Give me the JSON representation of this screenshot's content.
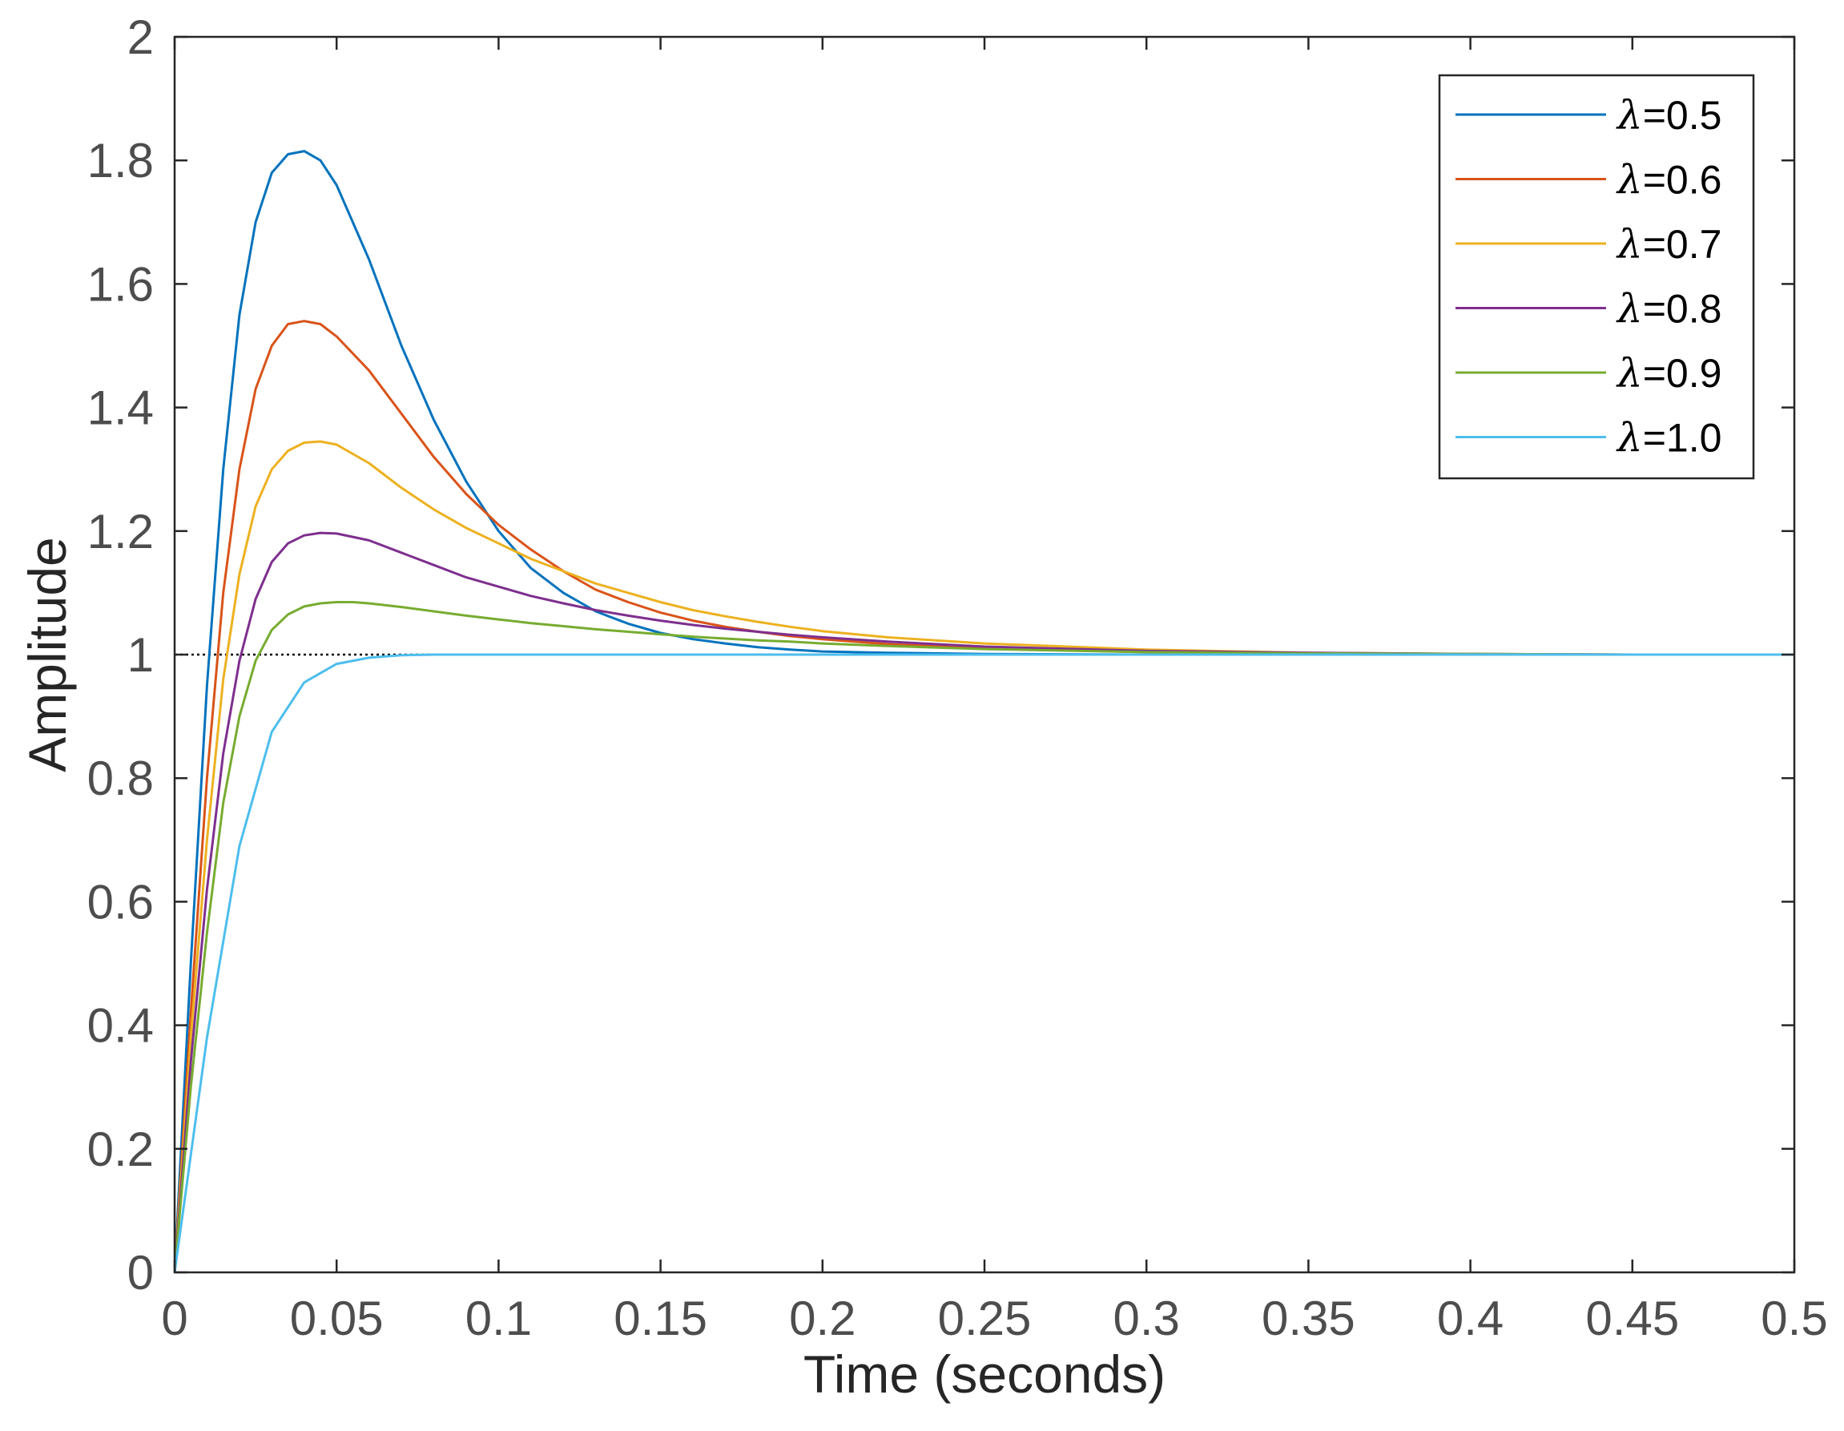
{
  "chart_data": {
    "type": "line",
    "title": "",
    "xlabel": "Time (seconds)",
    "ylabel": "Amplitude",
    "xlim": [
      0,
      0.5
    ],
    "ylim": [
      0,
      2
    ],
    "xticks": [
      0,
      0.05,
      0.1,
      0.15,
      0.2,
      0.25,
      0.3,
      0.35,
      0.4,
      0.45,
      0.5
    ],
    "xtick_labels": [
      "0",
      "0.05",
      "0.1",
      "0.15",
      "0.2",
      "0.25",
      "0.3",
      "0.35",
      "0.4",
      "0.45",
      "0.5"
    ],
    "yticks": [
      0,
      0.2,
      0.4,
      0.6,
      0.8,
      1,
      1.2,
      1.4,
      1.6,
      1.8,
      2
    ],
    "ytick_labels": [
      "0",
      "0.2",
      "0.4",
      "0.6",
      "0.8",
      "1",
      "1.2",
      "1.4",
      "1.6",
      "1.8",
      "2"
    ],
    "grid": false,
    "legend_position": "top-right",
    "reference_line": {
      "y": 1,
      "style": "dotted",
      "color": "#000000"
    },
    "series": [
      {
        "name": "λ=0.5",
        "color": "#0072BD",
        "x": [
          0,
          0.005,
          0.01,
          0.015,
          0.02,
          0.025,
          0.03,
          0.035,
          0.04,
          0.045,
          0.05,
          0.06,
          0.07,
          0.08,
          0.09,
          0.1,
          0.11,
          0.12,
          0.13,
          0.14,
          0.15,
          0.16,
          0.17,
          0.18,
          0.19,
          0.2,
          0.22,
          0.25,
          0.3,
          0.35,
          0.4,
          0.45,
          0.5
        ],
        "y": [
          0,
          0.5,
          0.95,
          1.3,
          1.55,
          1.7,
          1.78,
          1.81,
          1.815,
          1.8,
          1.76,
          1.64,
          1.5,
          1.38,
          1.28,
          1.2,
          1.14,
          1.1,
          1.07,
          1.05,
          1.035,
          1.025,
          1.018,
          1.012,
          1.008,
          1.005,
          1.003,
          1.001,
          1.0,
          1.0,
          1.0,
          1.0,
          1.0
        ]
      },
      {
        "name": "λ=0.6",
        "color": "#D95319",
        "x": [
          0,
          0.005,
          0.01,
          0.015,
          0.02,
          0.025,
          0.03,
          0.035,
          0.04,
          0.045,
          0.05,
          0.06,
          0.07,
          0.08,
          0.09,
          0.1,
          0.11,
          0.12,
          0.13,
          0.14,
          0.15,
          0.16,
          0.17,
          0.18,
          0.19,
          0.2,
          0.22,
          0.25,
          0.3,
          0.35,
          0.4,
          0.45,
          0.5
        ],
        "y": [
          0,
          0.42,
          0.8,
          1.1,
          1.3,
          1.43,
          1.5,
          1.535,
          1.54,
          1.535,
          1.515,
          1.46,
          1.39,
          1.32,
          1.26,
          1.21,
          1.17,
          1.135,
          1.105,
          1.085,
          1.068,
          1.055,
          1.045,
          1.037,
          1.03,
          1.025,
          1.017,
          1.01,
          1.004,
          1.002,
          1.001,
          1.0,
          1.0
        ]
      },
      {
        "name": "λ=0.7",
        "color": "#EDB120",
        "x": [
          0,
          0.005,
          0.01,
          0.015,
          0.02,
          0.025,
          0.03,
          0.035,
          0.04,
          0.045,
          0.05,
          0.06,
          0.07,
          0.08,
          0.09,
          0.1,
          0.11,
          0.12,
          0.13,
          0.14,
          0.15,
          0.16,
          0.17,
          0.18,
          0.19,
          0.2,
          0.22,
          0.25,
          0.3,
          0.35,
          0.4,
          0.45,
          0.5
        ],
        "y": [
          0,
          0.38,
          0.7,
          0.96,
          1.13,
          1.24,
          1.3,
          1.33,
          1.343,
          1.345,
          1.34,
          1.31,
          1.27,
          1.235,
          1.205,
          1.18,
          1.155,
          1.135,
          1.115,
          1.1,
          1.085,
          1.072,
          1.062,
          1.053,
          1.045,
          1.038,
          1.028,
          1.018,
          1.008,
          1.003,
          1.001,
          1.0,
          1.0
        ]
      },
      {
        "name": "λ=0.8",
        "color": "#7E2F8E",
        "x": [
          0,
          0.005,
          0.01,
          0.015,
          0.02,
          0.025,
          0.03,
          0.035,
          0.04,
          0.045,
          0.05,
          0.06,
          0.07,
          0.08,
          0.09,
          0.1,
          0.11,
          0.12,
          0.13,
          0.14,
          0.15,
          0.16,
          0.17,
          0.18,
          0.19,
          0.2,
          0.22,
          0.25,
          0.3,
          0.35,
          0.4,
          0.45,
          0.5
        ],
        "y": [
          0,
          0.34,
          0.62,
          0.84,
          0.99,
          1.09,
          1.15,
          1.18,
          1.193,
          1.197,
          1.196,
          1.185,
          1.165,
          1.145,
          1.125,
          1.11,
          1.095,
          1.083,
          1.072,
          1.063,
          1.055,
          1.048,
          1.042,
          1.037,
          1.032,
          1.028,
          1.021,
          1.013,
          1.006,
          1.003,
          1.001,
          1.0,
          1.0
        ]
      },
      {
        "name": "λ=0.9",
        "color": "#77AC30",
        "x": [
          0,
          0.005,
          0.01,
          0.015,
          0.02,
          0.025,
          0.03,
          0.035,
          0.04,
          0.045,
          0.05,
          0.055,
          0.06,
          0.07,
          0.08,
          0.09,
          0.1,
          0.11,
          0.12,
          0.13,
          0.14,
          0.15,
          0.16,
          0.17,
          0.18,
          0.19,
          0.2,
          0.22,
          0.25,
          0.3,
          0.35,
          0.4,
          0.45,
          0.5
        ],
        "y": [
          0,
          0.3,
          0.55,
          0.76,
          0.9,
          0.99,
          1.04,
          1.065,
          1.078,
          1.083,
          1.085,
          1.085,
          1.083,
          1.077,
          1.07,
          1.063,
          1.057,
          1.051,
          1.046,
          1.041,
          1.037,
          1.033,
          1.029,
          1.026,
          1.023,
          1.021,
          1.018,
          1.014,
          1.009,
          1.004,
          1.002,
          1.001,
          1.0,
          1.0
        ]
      },
      {
        "name": "λ=1.0",
        "color": "#4DBEEE",
        "x": [
          0,
          0.01,
          0.02,
          0.03,
          0.04,
          0.05,
          0.06,
          0.07,
          0.08,
          0.1,
          0.15,
          0.2,
          0.25,
          0.3,
          0.35,
          0.4,
          0.45,
          0.5
        ],
        "y": [
          0,
          0.38,
          0.69,
          0.875,
          0.955,
          0.985,
          0.995,
          0.999,
          1.0,
          1.0,
          1.0,
          1.0,
          1.0,
          1.0,
          1.0,
          1.0,
          1.0,
          1.0
        ]
      }
    ]
  }
}
